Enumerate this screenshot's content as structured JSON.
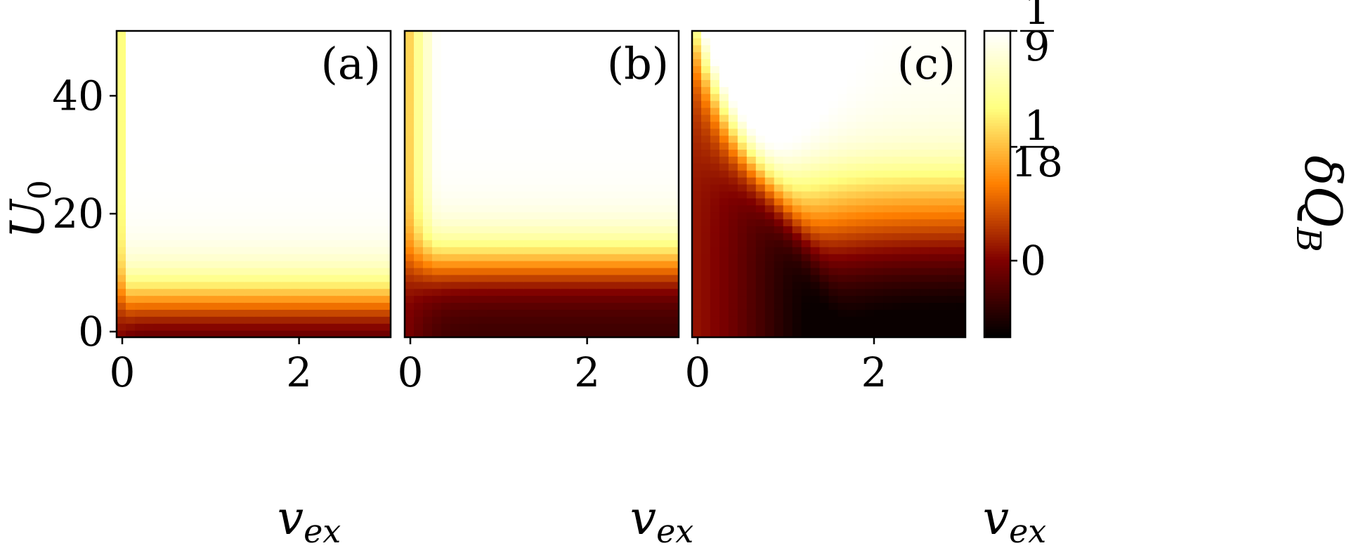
{
  "chart_data": {
    "type": "heatmap",
    "colormap": "afmhot",
    "x_range": [
      0,
      3.1
    ],
    "y_range": [
      0,
      51
    ],
    "x_ticks": [
      0,
      2
    ],
    "y_ticks": [
      0,
      20,
      40
    ],
    "xlabel_text": "v",
    "xlabel_sub": "ex",
    "ylabel_text": "U",
    "ylabel_sub": "0",
    "panels": [
      {
        "label": "(a)",
        "threshold_y": 4.5,
        "steepness": 1.5,
        "threshold_x": 0.05,
        "width_x": 0.06,
        "floor": 0.02
      },
      {
        "label": "(b)",
        "threshold_y": 10.5,
        "steepness": 1.5,
        "threshold_x": 0.12,
        "width_x": 0.15,
        "floor": 0.02
      },
      {
        "label": "(c)",
        "threshold_y": 28,
        "steepness": 0.85,
        "threshold_x": 0.8,
        "width_x": 0.4,
        "floor": 0.0
      }
    ],
    "colorbar": {
      "label_delta": "δ",
      "label_q": "Q",
      "label_sub": "B",
      "ticks": [
        {
          "num": "1",
          "den": "9"
        },
        {
          "num": "1",
          "den": "18"
        },
        {
          "num": "0",
          "den": ""
        }
      ]
    }
  }
}
